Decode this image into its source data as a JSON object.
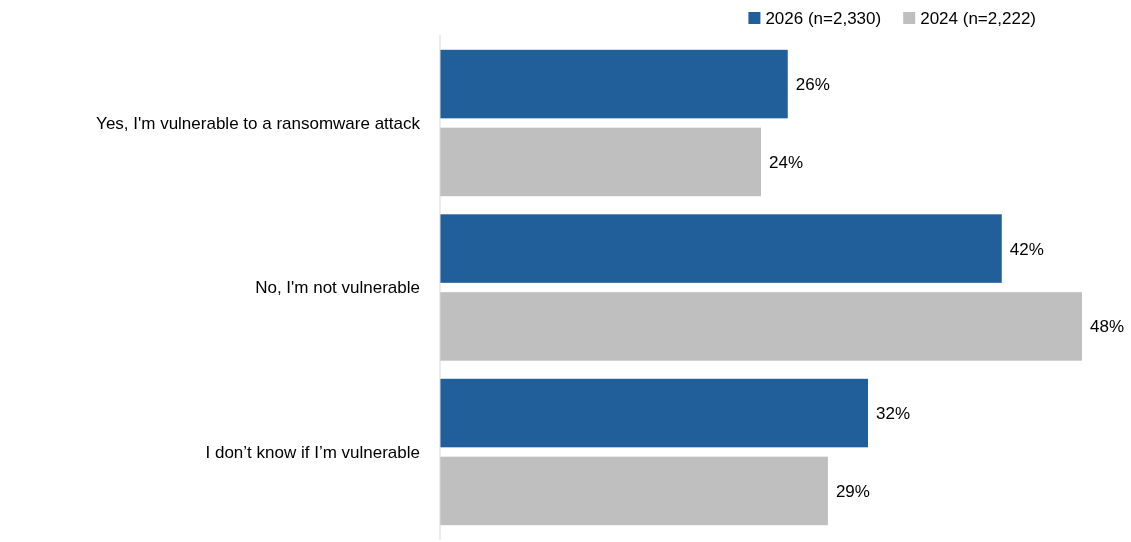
{
  "chart_data": {
    "type": "bar",
    "orientation": "horizontal",
    "categories": [
      "Yes, I'm vulnerable to a ransomware attack",
      "No, I'm not vulnerable",
      "I don’t know if I’m vulnerable"
    ],
    "series": [
      {
        "name": "2026 (n=2,330)",
        "color": "#215f9a",
        "values": [
          26,
          42,
          32
        ],
        "value_labels": [
          "26%",
          "42%",
          "32%"
        ]
      },
      {
        "name": "2024 (n=2,222)",
        "color": "#bfbfbf",
        "values": [
          24,
          48,
          29
        ],
        "value_labels": [
          "24%",
          "48%",
          "29%"
        ]
      }
    ],
    "legend": "top right"
  }
}
